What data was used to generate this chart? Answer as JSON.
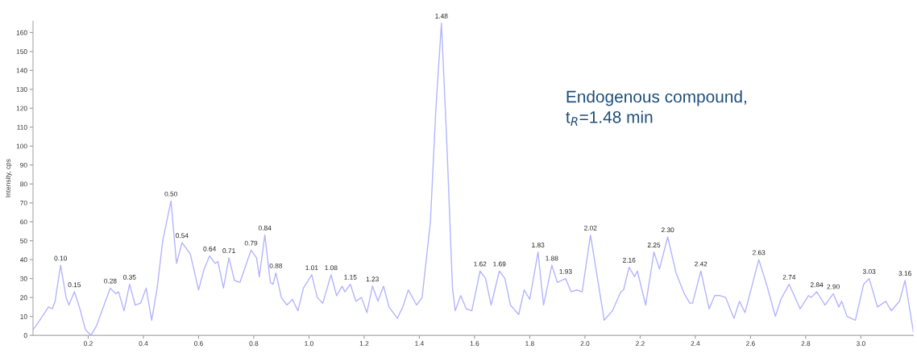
{
  "chart_data": {
    "type": "line",
    "ylabel": "Intensity, cps",
    "x": [
      0.0,
      0.02,
      0.056,
      0.07,
      0.08,
      0.1,
      0.12,
      0.13,
      0.15,
      0.17,
      0.19,
      0.21,
      0.23,
      0.25,
      0.28,
      0.3,
      0.31,
      0.33,
      0.35,
      0.37,
      0.39,
      0.41,
      0.43,
      0.45,
      0.47,
      0.5,
      0.52,
      0.54,
      0.57,
      0.6,
      0.62,
      0.64,
      0.66,
      0.67,
      0.69,
      0.71,
      0.73,
      0.75,
      0.79,
      0.81,
      0.82,
      0.84,
      0.86,
      0.87,
      0.88,
      0.9,
      0.92,
      0.94,
      0.96,
      0.98,
      1.01,
      1.03,
      1.05,
      1.08,
      1.1,
      1.12,
      1.13,
      1.15,
      1.17,
      1.19,
      1.21,
      1.23,
      1.25,
      1.27,
      1.29,
      1.32,
      1.34,
      1.36,
      1.39,
      1.41,
      1.44,
      1.46,
      1.48,
      1.5,
      1.52,
      1.53,
      1.55,
      1.57,
      1.59,
      1.62,
      1.64,
      1.66,
      1.69,
      1.71,
      1.73,
      1.76,
      1.78,
      1.8,
      1.83,
      1.85,
      1.88,
      1.9,
      1.93,
      1.95,
      1.97,
      1.99,
      2.02,
      2.04,
      2.07,
      2.1,
      2.13,
      2.14,
      2.16,
      2.18,
      2.19,
      2.22,
      2.25,
      2.27,
      2.3,
      2.33,
      2.36,
      2.38,
      2.39,
      2.42,
      2.45,
      2.47,
      2.49,
      2.51,
      2.54,
      2.56,
      2.58,
      2.63,
      2.66,
      2.69,
      2.71,
      2.74,
      2.78,
      2.81,
      2.82,
      2.84,
      2.87,
      2.9,
      2.92,
      2.93,
      2.95,
      2.98,
      3.01,
      3.03,
      3.06,
      3.09,
      3.11,
      3.14,
      3.16,
      3.19
    ],
    "series": [
      {
        "color": "#b4b4ff",
        "values": [
          3,
          7,
          15,
          14,
          18,
          37,
          20,
          16,
          23,
          14,
          3,
          0,
          5,
          13,
          25,
          22,
          23,
          13,
          27,
          16,
          17,
          25,
          8,
          25,
          50,
          71,
          38,
          49,
          43,
          24,
          35,
          42,
          38,
          39,
          25,
          41,
          29,
          28,
          45,
          41,
          31,
          53,
          28,
          27,
          33,
          20,
          16,
          19,
          13,
          25,
          32,
          20,
          17,
          32,
          21,
          26,
          23,
          27,
          18,
          20,
          12,
          26,
          18,
          26,
          15,
          9,
          15,
          24,
          16,
          20,
          60,
          120,
          165,
          100,
          25,
          13,
          21,
          14,
          13,
          34,
          30,
          16,
          34,
          30,
          16,
          11,
          24,
          19,
          44,
          16,
          37,
          28,
          30,
          23,
          24,
          23,
          53,
          35,
          8,
          13,
          23,
          24,
          36,
          31,
          34,
          16,
          44,
          35,
          52,
          33,
          22,
          17,
          17,
          34,
          14,
          21,
          21,
          20,
          9,
          18,
          12,
          40,
          26,
          10,
          19,
          27,
          14,
          21,
          20,
          23,
          16,
          22,
          15,
          18,
          10,
          8,
          27,
          30,
          15,
          18,
          13,
          18,
          29,
          2
        ]
      }
    ],
    "xlim": [
      0,
      3.19
    ],
    "ylim": [
      0,
      166
    ],
    "xticks": [
      0.2,
      0.4,
      0.6,
      0.8,
      {
        "value": 1.0,
        "label": "1.0"
      },
      1.2,
      1.4,
      1.6,
      1.8,
      {
        "value": 2.0,
        "label": "2.0"
      },
      2.2,
      2.4,
      2.6,
      2.8,
      {
        "value": 3.0,
        "label": "3.0"
      }
    ],
    "yticks": [
      0,
      10,
      20,
      30,
      40,
      50,
      60,
      70,
      80,
      90,
      100,
      110,
      120,
      130,
      140,
      150,
      160
    ],
    "grid": false,
    "legend": false,
    "marker": "none",
    "line_style": "solid",
    "annotations": [
      {
        "text": "0.10",
        "x": 0.1,
        "y": 37
      },
      {
        "text": "0.15",
        "x": 0.15,
        "y": 23
      },
      {
        "text": "0.28",
        "x": 0.28,
        "y": 25
      },
      {
        "text": "0.35",
        "x": 0.35,
        "y": 27
      },
      {
        "text": "0.50",
        "x": 0.5,
        "y": 71
      },
      {
        "text": "0.54",
        "x": 0.54,
        "y": 49
      },
      {
        "text": "0.64",
        "x": 0.64,
        "y": 42
      },
      {
        "text": "0.71",
        "x": 0.71,
        "y": 41
      },
      {
        "text": "0.79",
        "x": 0.79,
        "y": 45
      },
      {
        "text": "0.84",
        "x": 0.84,
        "y": 53
      },
      {
        "text": "0.88",
        "x": 0.88,
        "y": 33
      },
      {
        "text": "1.01",
        "x": 1.01,
        "y": 32
      },
      {
        "text": "1.08",
        "x": 1.08,
        "y": 32
      },
      {
        "text": "1.15",
        "x": 1.15,
        "y": 27
      },
      {
        "text": "1.23",
        "x": 1.23,
        "y": 26
      },
      {
        "text": "1.48",
        "x": 1.48,
        "y": 165
      },
      {
        "text": "1.62",
        "x": 1.62,
        "y": 34
      },
      {
        "text": "1.69",
        "x": 1.69,
        "y": 34
      },
      {
        "text": "1.83",
        "x": 1.83,
        "y": 44
      },
      {
        "text": "1.88",
        "x": 1.88,
        "y": 37
      },
      {
        "text": "1.93",
        "x": 1.93,
        "y": 30
      },
      {
        "text": "2.02",
        "x": 2.02,
        "y": 53
      },
      {
        "text": "2.16",
        "x": 2.16,
        "y": 36
      },
      {
        "text": "2.25",
        "x": 2.25,
        "y": 44
      },
      {
        "text": "2.30",
        "x": 2.3,
        "y": 52
      },
      {
        "text": "2.42",
        "x": 2.42,
        "y": 34
      },
      {
        "text": "2.63",
        "x": 2.63,
        "y": 40
      },
      {
        "text": "2.74",
        "x": 2.74,
        "y": 27
      },
      {
        "text": "2.84",
        "x": 2.84,
        "y": 23
      },
      {
        "text": "2.90",
        "x": 2.9,
        "y": 22
      },
      {
        "text": "3.03",
        "x": 3.03,
        "y": 30
      },
      {
        "text": "3.16",
        "x": 3.16,
        "y": 29
      },
      "Endogenous compound,\nt$_{R}$=1.48 min"
    ]
  }
}
